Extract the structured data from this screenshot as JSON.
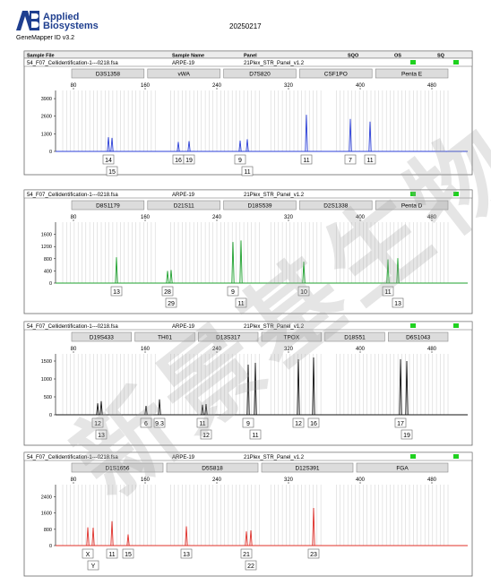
{
  "header": {
    "brand_line1": "Applied",
    "brand_line2": "Biosystems",
    "app_version": "GeneMapper ID v3.2",
    "run_date": "20250217",
    "watermark": "新景基生物"
  },
  "colors": {
    "blue_dye": "#2b3fd8",
    "green_dye": "#1ea12e",
    "black_dye": "#111111",
    "red_dye": "#e0302a",
    "quality_flag": "#1fd11f",
    "bin_line": "#c8c8c8"
  },
  "panels": [
    {
      "columns": {
        "sample_file": "Sample File",
        "sample_name": "Sample Name",
        "panel": "Panel",
        "sqo": "SQO",
        "os": "OS",
        "sq": "SQ"
      },
      "sample_file": "54_F07_Cellidentification-1---0218.fsa",
      "sample_name": "ARPE-19",
      "panel": "21Plex_STR_Panel_v1.2",
      "markers": [
        "D3S1358",
        "vWA",
        "D7S820",
        "CSF1PO",
        "Penta E"
      ],
      "dye": "blue",
      "chart_data": {
        "type": "line",
        "xlim": [
          60,
          520
        ],
        "x_ticks": [
          80,
          160,
          240,
          320,
          400,
          480
        ],
        "ylim": [
          0,
          4500
        ],
        "y_ticks": [
          0,
          1300,
          2600,
          3900
        ],
        "alleles": [
          {
            "label": "14",
            "x": 119,
            "height": 1050,
            "label_row": 1
          },
          {
            "label": "15",
            "x": 123,
            "height": 1000,
            "label_row": 2
          },
          {
            "label": "16",
            "x": 197,
            "height": 700,
            "label_row": 1
          },
          {
            "label": "19",
            "x": 209,
            "height": 760,
            "label_row": 1
          },
          {
            "label": "9",
            "x": 266,
            "height": 800,
            "label_row": 1
          },
          {
            "label": "11",
            "x": 274,
            "height": 900,
            "label_row": 2
          },
          {
            "label": "11",
            "x": 340,
            "height": 2700,
            "label_row": 1
          },
          {
            "label": "7",
            "x": 389,
            "height": 2400,
            "label_row": 1
          },
          {
            "label": "11",
            "x": 411,
            "height": 2200,
            "label_row": 1
          }
        ]
      }
    },
    {
      "columns": {
        "sample_file": "Sample File",
        "sample_name": "Sample Name",
        "panel": "Panel",
        "sqo": "SQO",
        "os": "OS",
        "sq": "SQ"
      },
      "sample_file": "54_F07_Cellidentification-1---0218.fsa",
      "sample_name": "ARPE-19",
      "panel": "21Plex_STR_Panel_v1.2",
      "markers": [
        "D8S1179",
        "D21S11",
        "D18S539",
        "D2S1338",
        "Penta D"
      ],
      "dye": "green",
      "chart_data": {
        "type": "line",
        "xlim": [
          60,
          520
        ],
        "x_ticks": [
          80,
          160,
          240,
          320,
          400,
          480
        ],
        "ylim": [
          0,
          2000
        ],
        "y_ticks": [
          0,
          400,
          800,
          1200,
          1600
        ],
        "alleles": [
          {
            "label": "13",
            "x": 128,
            "height": 850,
            "label_row": 1
          },
          {
            "label": "28",
            "x": 185,
            "height": 400,
            "label_row": 1
          },
          {
            "label": "29",
            "x": 189,
            "height": 430,
            "label_row": 2
          },
          {
            "label": "9",
            "x": 258,
            "height": 1350,
            "label_row": 1
          },
          {
            "label": "11",
            "x": 267,
            "height": 1400,
            "label_row": 2
          },
          {
            "label": "10",
            "x": 337,
            "height": 700,
            "label_row": 1
          },
          {
            "label": "11",
            "x": 431,
            "height": 780,
            "label_row": 1
          },
          {
            "label": "13",
            "x": 442,
            "height": 820,
            "label_row": 2
          }
        ]
      }
    },
    {
      "columns": {
        "sample_file": "Sample File",
        "sample_name": "Sample Name",
        "panel": "Panel",
        "sqo": "SQO",
        "os": "OS",
        "sq": "SQ"
      },
      "sample_file": "54_F07_Cellidentification-1---0218.fsa",
      "sample_name": "ARPE-19",
      "panel": "21Plex_STR_Panel_v1.2",
      "markers": [
        "D19S433",
        "TH01",
        "D13S317",
        "TPOX",
        "D18S51",
        "D6S1043"
      ],
      "dye": "black",
      "chart_data": {
        "type": "line",
        "xlim": [
          60,
          520
        ],
        "x_ticks": [
          80,
          160,
          240,
          320,
          400,
          480
        ],
        "ylim": [
          0,
          1700
        ],
        "y_ticks": [
          0,
          500,
          1000,
          1500
        ],
        "alleles": [
          {
            "label": "12",
            "x": 107,
            "height": 320,
            "label_row": 1
          },
          {
            "label": "13",
            "x": 111,
            "height": 380,
            "label_row": 2
          },
          {
            "label": "6",
            "x": 161,
            "height": 250,
            "label_row": 1
          },
          {
            "label": "9.3",
            "x": 176,
            "height": 430,
            "label_row": 1
          },
          {
            "label": "11",
            "x": 224,
            "height": 280,
            "label_row": 1
          },
          {
            "label": "12",
            "x": 228,
            "height": 300,
            "label_row": 2
          },
          {
            "label": "9",
            "x": 275,
            "height": 1400,
            "label_row": 1
          },
          {
            "label": "11",
            "x": 283,
            "height": 1450,
            "label_row": 2
          },
          {
            "label": "12",
            "x": 331,
            "height": 1550,
            "label_row": 1
          },
          {
            "label": "16",
            "x": 348,
            "height": 1600,
            "label_row": 1
          },
          {
            "label": "17",
            "x": 445,
            "height": 1550,
            "label_row": 1
          },
          {
            "label": "19",
            "x": 452,
            "height": 1500,
            "label_row": 2
          }
        ]
      }
    },
    {
      "columns": {
        "sample_file": "Sample File",
        "sample_name": "Sample Name",
        "panel": "Panel",
        "sqo": "SQO",
        "os": "OS",
        "sq": "SQ"
      },
      "sample_file": "54_F07_Cellidentification-1---0218.fsa",
      "sample_name": "ARPE-19",
      "panel": "21Plex_STR_Panel_v1.2",
      "markers": [
        "D1S1656",
        "D5S818",
        "D12S391",
        "FGA"
      ],
      "dye": "red",
      "chart_data": {
        "type": "line",
        "xlim": [
          60,
          520
        ],
        "x_ticks": [
          80,
          160,
          240,
          320,
          400,
          480
        ],
        "ylim": [
          0,
          3000
        ],
        "y_ticks": [
          0,
          800,
          1600,
          2400
        ],
        "alleles": [
          {
            "label": "X",
            "x": 96,
            "height": 900,
            "label_row": 1
          },
          {
            "label": "Y",
            "x": 102,
            "height": 880,
            "label_row": 2
          },
          {
            "label": "11",
            "x": 123,
            "height": 1200,
            "label_row": 1
          },
          {
            "label": "15",
            "x": 141,
            "height": 550,
            "label_row": 1
          },
          {
            "label": "13",
            "x": 206,
            "height": 950,
            "label_row": 1
          },
          {
            "label": "21",
            "x": 273,
            "height": 700,
            "label_row": 1
          },
          {
            "label": "22",
            "x": 278,
            "height": 750,
            "label_row": 2
          },
          {
            "label": "23",
            "x": 348,
            "height": 1850,
            "label_row": 1
          }
        ]
      }
    }
  ]
}
